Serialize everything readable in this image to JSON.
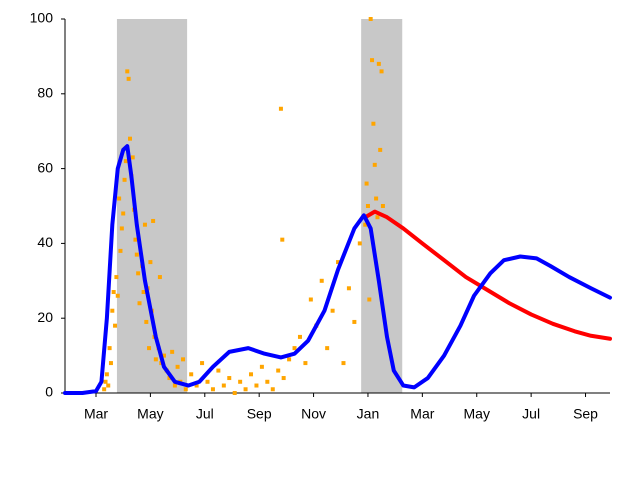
{
  "chart_data": {
    "type": "line",
    "xlim": [
      1.86,
      21.9
    ],
    "ylim": [
      0,
      100
    ],
    "yticks": [
      0,
      20,
      40,
      60,
      80,
      100
    ],
    "xticks": [
      {
        "value": 3,
        "label": "Mar"
      },
      {
        "value": 5,
        "label": "May"
      },
      {
        "value": 7,
        "label": "Jul"
      },
      {
        "value": 9,
        "label": "Sep"
      },
      {
        "value": 11,
        "label": "Nov"
      },
      {
        "value": 13,
        "label": "Jan"
      },
      {
        "value": 15,
        "label": "Mar"
      },
      {
        "value": 17,
        "label": "May"
      },
      {
        "value": 19,
        "label": "Jul"
      },
      {
        "value": 21,
        "label": "Sep"
      }
    ],
    "grid": false,
    "shaded_regions": {
      "color": "#c8c8c8",
      "ranges": [
        [
          3.77,
          6.35
        ],
        [
          12.75,
          14.26
        ]
      ]
    },
    "series": [
      {
        "type": "scatter",
        "color": "#ffa500",
        "x": [
          3.3,
          3.35,
          3.4,
          3.45,
          3.5,
          3.55,
          3.6,
          3.65,
          3.7,
          3.75,
          3.8,
          3.85,
          3.9,
          3.95,
          4.0,
          4.05,
          4.1,
          4.15,
          4.2,
          4.25,
          4.3,
          4.35,
          4.4,
          4.45,
          4.5,
          4.55,
          4.6,
          4.7,
          4.75,
          4.8,
          4.85,
          4.9,
          4.95,
          5.0,
          5.05,
          5.1,
          5.15,
          5.2,
          5.3,
          5.35,
          5.4,
          5.5,
          5.6,
          5.7,
          5.8,
          5.9,
          6.0,
          6.1,
          6.2,
          6.3,
          6.5,
          6.7,
          6.9,
          7.1,
          7.3,
          7.5,
          7.7,
          7.9,
          8.1,
          8.3,
          8.5,
          8.7,
          8.9,
          9.1,
          9.3,
          9.5,
          9.7,
          9.8,
          9.85,
          9.9,
          10.1,
          10.3,
          10.5,
          10.7,
          10.9,
          11.1,
          11.3,
          11.5,
          11.7,
          11.9,
          12.1,
          12.3,
          12.5,
          12.7,
          12.9,
          12.95,
          13.0,
          13.05,
          13.1,
          13.15,
          13.2,
          13.25,
          13.3,
          13.35,
          13.4,
          13.45,
          13.5,
          13.55
        ],
        "values": [
          1,
          3,
          5,
          2,
          12,
          8,
          22,
          27,
          18,
          31,
          26,
          52,
          38,
          44,
          48,
          57,
          62,
          86,
          84,
          68,
          58,
          63,
          49,
          41,
          37,
          32,
          24,
          34,
          27,
          45,
          19,
          28,
          12,
          35,
          22,
          46,
          15,
          9,
          12,
          31,
          8,
          10,
          6,
          4,
          11,
          2,
          7,
          3,
          9,
          1,
          5,
          2,
          8,
          3,
          1,
          6,
          2,
          4,
          0,
          3,
          1,
          5,
          2,
          7,
          3,
          1,
          6,
          76,
          41,
          4,
          9,
          12,
          15,
          8,
          25,
          18,
          30,
          12,
          22,
          35,
          8,
          28,
          19,
          40,
          45,
          56,
          50,
          25,
          100,
          89,
          72,
          61,
          52,
          47,
          88,
          65,
          86,
          50
        ]
      },
      {
        "type": "line",
        "color": "#ff0000",
        "x": [
          12.9,
          13.25,
          13.7,
          14.3,
          15.0,
          15.8,
          16.6,
          17.4,
          18.2,
          19.0,
          19.8,
          20.6,
          21.2,
          21.9
        ],
        "values": [
          47,
          48.5,
          47,
          44,
          40,
          35.5,
          31,
          27.5,
          24,
          21,
          18.5,
          16.5,
          15.3,
          14.5
        ]
      },
      {
        "type": "line",
        "color": "#0000ff",
        "x": [
          1.86,
          2.5,
          3.0,
          3.2,
          3.4,
          3.6,
          3.8,
          4.0,
          4.15,
          4.3,
          4.5,
          4.8,
          5.2,
          5.5,
          5.9,
          6.4,
          6.8,
          7.3,
          7.9,
          8.6,
          9.2,
          9.8,
          10.3,
          10.8,
          11.4,
          11.9,
          12.5,
          12.85,
          13.1,
          13.4,
          13.7,
          13.95,
          14.3,
          14.7,
          15.2,
          15.8,
          16.4,
          16.9,
          17.5,
          18.0,
          18.6,
          19.2,
          19.7,
          20.4,
          21.2,
          21.9
        ],
        "values": [
          0,
          0,
          0.5,
          3,
          20,
          45,
          60,
          65,
          66,
          58,
          45,
          30,
          15,
          7,
          3,
          2,
          3,
          7,
          11,
          12,
          10.5,
          9.5,
          10.5,
          14,
          22,
          33,
          44,
          47.5,
          44,
          30,
          15,
          6,
          2,
          1.5,
          4,
          10,
          18,
          26,
          32,
          35.5,
          36.5,
          36,
          34,
          31,
          28,
          25.5
        ]
      }
    ]
  }
}
